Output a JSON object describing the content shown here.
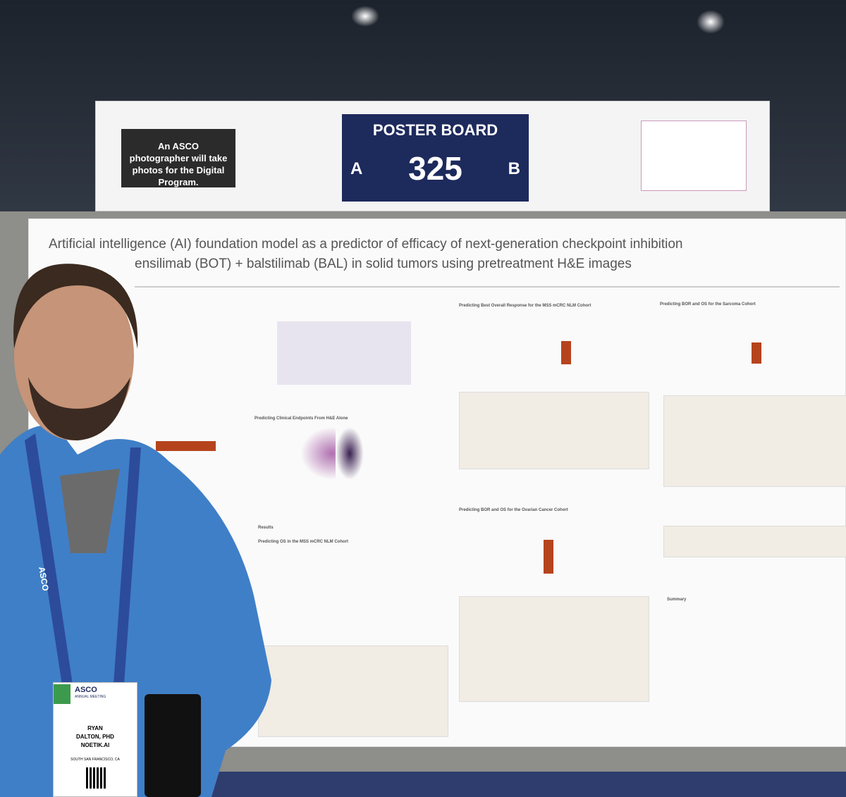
{
  "sign": {
    "notice": "An ASCO photographer will take photos for the Digital Program.",
    "board_label": "POSTER BOARD",
    "side_left": "A",
    "board_number": "325",
    "side_right": "B"
  },
  "poster": {
    "title_line_1": "Artificial intelligence (AI) foundation model as a predictor of efficacy of next-generation checkpoint inhibition",
    "title_line_2": "ensilimab (BOT) + balstilimab (BAL) in solid tumors using pretreatment H&E images",
    "sections": [
      "Predicting Clinical Endpoints From H&E Alone",
      "Predicting Best Overall Response for the MSS mCRC NLM Cohort",
      "Predicting BOR and OS for the Sarcoma Cohort",
      "Results",
      "Predicting OS in the MSS mCRC NLM Cohort",
      "Predicting BOR and OS for the Ovarian Cancer Cohort",
      "Summary"
    ]
  },
  "badge": {
    "org": "ASCO",
    "event": "ANNUAL MEETING",
    "first_name": "RYAN",
    "last_name": "DALTON, PHD",
    "company": "NOETIK.AI",
    "city": "SOUTH SAN FRANCISCO, CA"
  },
  "lanyard": "ASCO"
}
